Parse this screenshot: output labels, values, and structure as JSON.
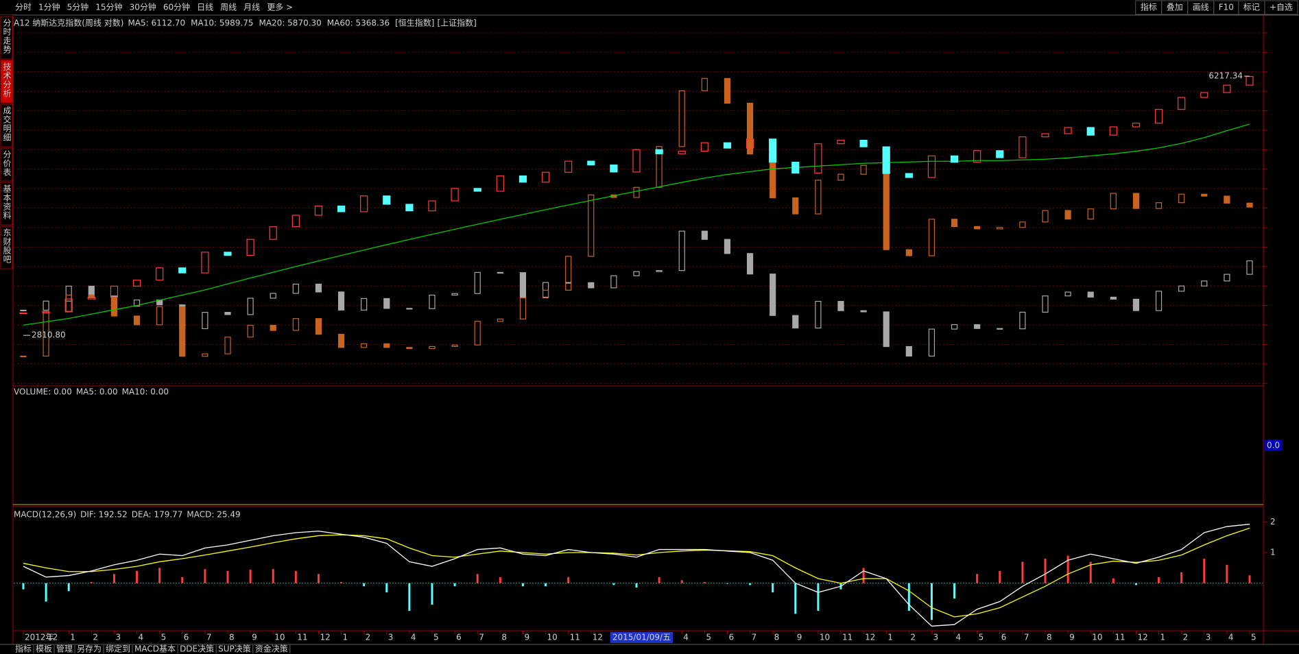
{
  "toolbar": {
    "tabs": [
      "分时",
      "1分钟",
      "5分钟",
      "15分钟",
      "30分钟",
      "60分钟",
      "日线",
      "周线",
      "月线",
      "更多 >"
    ],
    "active": 7,
    "buttons": [
      "指标",
      "叠加",
      "画线",
      "F10",
      "标记",
      "+自选"
    ]
  },
  "sidebar": {
    "items": [
      "分时走势",
      "技术分析",
      "成交明细",
      "分价表",
      "基本资料",
      "东财股吧"
    ],
    "active": 1
  },
  "bottom_tabs": {
    "items": [
      "指标",
      "模板",
      "管理",
      "另存为",
      "绑定到",
      "MACD基本",
      "DDE决策",
      "SUP决策",
      "资金决策"
    ],
    "active": 2
  },
  "chart_data": {
    "type": "candlestick",
    "title": "A12 纳斯达克指数(周线 对数)",
    "log_scale": true,
    "categories": [
      "2012年",
      "12",
      "1",
      "2",
      "3",
      "4",
      "5",
      "6",
      "7",
      "8",
      "9",
      "10",
      "11",
      "12",
      "1",
      "2",
      "3",
      "4",
      "5",
      "6",
      "7",
      "8",
      "9",
      "10",
      "11",
      "12",
      null,
      null,
      null,
      "4",
      "5",
      "6",
      "7",
      "8",
      "9",
      "10",
      "11",
      "12",
      "1",
      "2",
      "3",
      "4",
      "5",
      "6",
      "7",
      "8",
      "9",
      "10",
      "11",
      "12",
      "1",
      "2",
      "3",
      "4",
      "5"
    ],
    "cursor_label": "2015/01/09/五",
    "color_up": "#ff3c3c",
    "color_down": "#54ffff",
    "ylim": [
      2407,
      7464
    ],
    "values": [
      3010,
      3020,
      3142,
      3160,
      3268,
      3329,
      3456,
      3403,
      3626,
      3590,
      3771,
      3920,
      4060,
      4177,
      4104,
      4308,
      4199,
      4115,
      4243,
      4408,
      4370,
      4580,
      4493,
      4631,
      4792,
      4736,
      4635,
      4964,
      4901,
      4941,
      5070,
      4987,
      5128,
      4777,
      4620,
      5054,
      5109,
      5007,
      4614,
      4558,
      4870,
      4775,
      4948,
      4843,
      5162,
      5213,
      5312,
      5189,
      5323,
      5383,
      5615,
      5825,
      5912,
      6048,
      6210
    ],
    "ma_labels": [
      {
        "text": "MA5: 6112.70",
        "color": "#ffffff"
      },
      {
        "text": "MA10: 5989.75",
        "color": "#ffff00"
      },
      {
        "text": "MA20: 5870.30",
        "color": "#ff00ff"
      },
      {
        "text": "MA60: 5368.36",
        "color": "#00e000"
      }
    ],
    "ma60": {
      "color": "#00c800",
      "values": [
        2900,
        2930,
        2960,
        3000,
        3040,
        3080,
        3130,
        3180,
        3230,
        3290,
        3350,
        3410,
        3470,
        3530,
        3590,
        3650,
        3710,
        3770,
        3830,
        3890,
        3950,
        4010,
        4070,
        4130,
        4190,
        4250,
        4310,
        4370,
        4430,
        4490,
        4550,
        4600,
        4640,
        4680,
        4700,
        4720,
        4740,
        4760,
        4770,
        4780,
        4790,
        4790,
        4800,
        4800,
        4810,
        4820,
        4840,
        4870,
        4900,
        4940,
        4990,
        5060,
        5150,
        5260,
        5368.36
      ]
    },
    "annotations": [
      {
        "value": 6217.34,
        "label": "6217.34"
      },
      {
        "value": 2810.8,
        "label": "2810.80"
      }
    ],
    "overlays": [
      {
        "name": "[恒生指数]",
        "color": "#a8a8a8",
        "ylim": [
          17425,
          54660
        ],
        "values": [
          22030,
          22657,
          23730,
          23020,
          22300,
          22737,
          22392,
          20803,
          21883,
          21731,
          22860,
          23206,
          23881,
          23306,
          22035,
          22837,
          22151,
          22134,
          23082,
          23190,
          24757,
          24742,
          22933,
          23998,
          23987,
          23605,
          24507,
          24823,
          24901,
          28133,
          27424,
          26250,
          24636,
          21670,
          20846,
          22640,
          21996,
          21914,
          19683,
          19111,
          20777,
          21067,
          20815,
          20794,
          21891,
          23023,
          23297,
          22935,
          22790,
          22001,
          23361,
          23741,
          24112,
          24615,
          25661
        ]
      },
      {
        "name": "[上证指数]",
        "color": "#c8641e",
        "ylim": [
          1808,
          5570
        ],
        "values": [
          1980,
          2269,
          2385,
          2365,
          2237,
          2178,
          2301,
          1979,
          1994,
          2098,
          2175,
          2141,
          2220,
          2116,
          2033,
          2056,
          2033,
          2026,
          2039,
          2048,
          2201,
          2217,
          2364,
          2420,
          2683,
          3235,
          3210,
          3310,
          3748,
          4442,
          4612,
          4277,
          3664,
          3206,
          3053,
          3383,
          3445,
          3539,
          2738,
          2688,
          3004,
          2938,
          2917,
          2930,
          2979,
          3085,
          3005,
          3100,
          3250,
          3104,
          3159,
          3242,
          3223,
          3155,
          3117
        ]
      }
    ],
    "volume": {
      "title": "VOLUME: 0.00",
      "ma5": "MA5: 0.00",
      "ma10": "MA10: 0.00",
      "axis_label": "0.0"
    },
    "macd": {
      "title": "MACD(12,26,9)",
      "dif_label": "DIF: 192.52",
      "dea_label": "DEA: 179.77",
      "macd_label": "MACD: 25.49",
      "ylim": [
        -155,
        250
      ],
      "yticks": [
        {
          "value": 200,
          "label": "2"
        },
        {
          "value": 100,
          "label": "1"
        }
      ],
      "dif_color": "#ffffff",
      "dea_color": "#ffff00",
      "up_color": "#ff3c3c",
      "down_color": "#54ffff",
      "dif": [
        55,
        20,
        25,
        40,
        60,
        75,
        95,
        90,
        115,
        125,
        140,
        155,
        165,
        170,
        160,
        150,
        130,
        70,
        55,
        80,
        110,
        115,
        95,
        90,
        110,
        100,
        95,
        85,
        110,
        110,
        110,
        105,
        100,
        75,
        0,
        -30,
        -10,
        40,
        15,
        -70,
        -140,
        -135,
        -85,
        -60,
        -10,
        30,
        75,
        95,
        80,
        65,
        85,
        110,
        165,
        185,
        192.52
      ],
      "dea": [
        65,
        50,
        38,
        38,
        45,
        55,
        70,
        80,
        92,
        105,
        118,
        132,
        145,
        155,
        158,
        155,
        145,
        115,
        90,
        85,
        95,
        105,
        100,
        95,
        100,
        100,
        98,
        92,
        100,
        105,
        108,
        106,
        103,
        90,
        50,
        15,
        0,
        15,
        15,
        -25,
        -80,
        -110,
        -100,
        -80,
        -45,
        -10,
        30,
        60,
        72,
        68,
        75,
        92,
        125,
        155,
        179.77
      ],
      "hist": [
        -20,
        -60,
        -26,
        4,
        30,
        40,
        50,
        20,
        46,
        40,
        44,
        46,
        40,
        30,
        4,
        -10,
        -30,
        -90,
        -70,
        -10,
        30,
        20,
        -10,
        -10,
        20,
        0,
        -6,
        -14,
        20,
        10,
        4,
        -2,
        -6,
        -30,
        -100,
        -90,
        -20,
        50,
        0,
        -90,
        -120,
        -50,
        30,
        40,
        70,
        80,
        90,
        70,
        16,
        -6,
        20,
        36,
        80,
        60,
        25.49
      ]
    }
  }
}
